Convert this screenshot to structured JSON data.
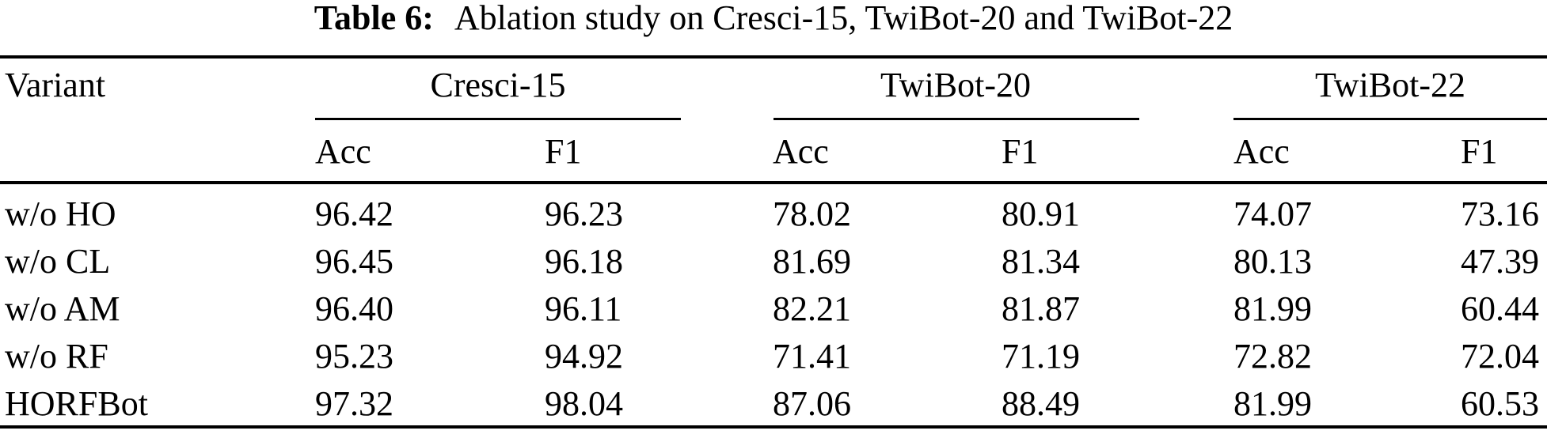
{
  "caption": {
    "label": "Table 6:",
    "text": "Ablation study on Cresci-15, TwiBot-20 and TwiBot-22"
  },
  "table": {
    "variant_header": "Variant",
    "groups": [
      {
        "name": "Cresci-15"
      },
      {
        "name": "TwiBot-20"
      },
      {
        "name": "TwiBot-22"
      }
    ],
    "metric_headers": [
      "Acc",
      "F1",
      "Acc",
      "F1",
      "Acc",
      "F1"
    ],
    "rows": [
      {
        "variant": "w/o HO",
        "values": [
          "96.42",
          "96.23",
          "78.02",
          "80.91",
          "74.07",
          "73.16"
        ]
      },
      {
        "variant": "w/o CL",
        "values": [
          "96.45",
          "96.18",
          "81.69",
          "81.34",
          "80.13",
          "47.39"
        ]
      },
      {
        "variant": "w/o AM",
        "values": [
          "96.40",
          "96.11",
          "82.21",
          "81.87",
          "81.99",
          "60.44"
        ]
      },
      {
        "variant": "w/o RF",
        "values": [
          "95.23",
          "94.92",
          "71.41",
          "71.19",
          "72.82",
          "72.04"
        ]
      },
      {
        "variant": "HORFBot",
        "values": [
          "97.32",
          "98.04",
          "87.06",
          "88.49",
          "81.99",
          "60.53"
        ]
      }
    ]
  },
  "colors": {
    "text": "#000000",
    "background": "#ffffff",
    "rule": "#000000"
  }
}
